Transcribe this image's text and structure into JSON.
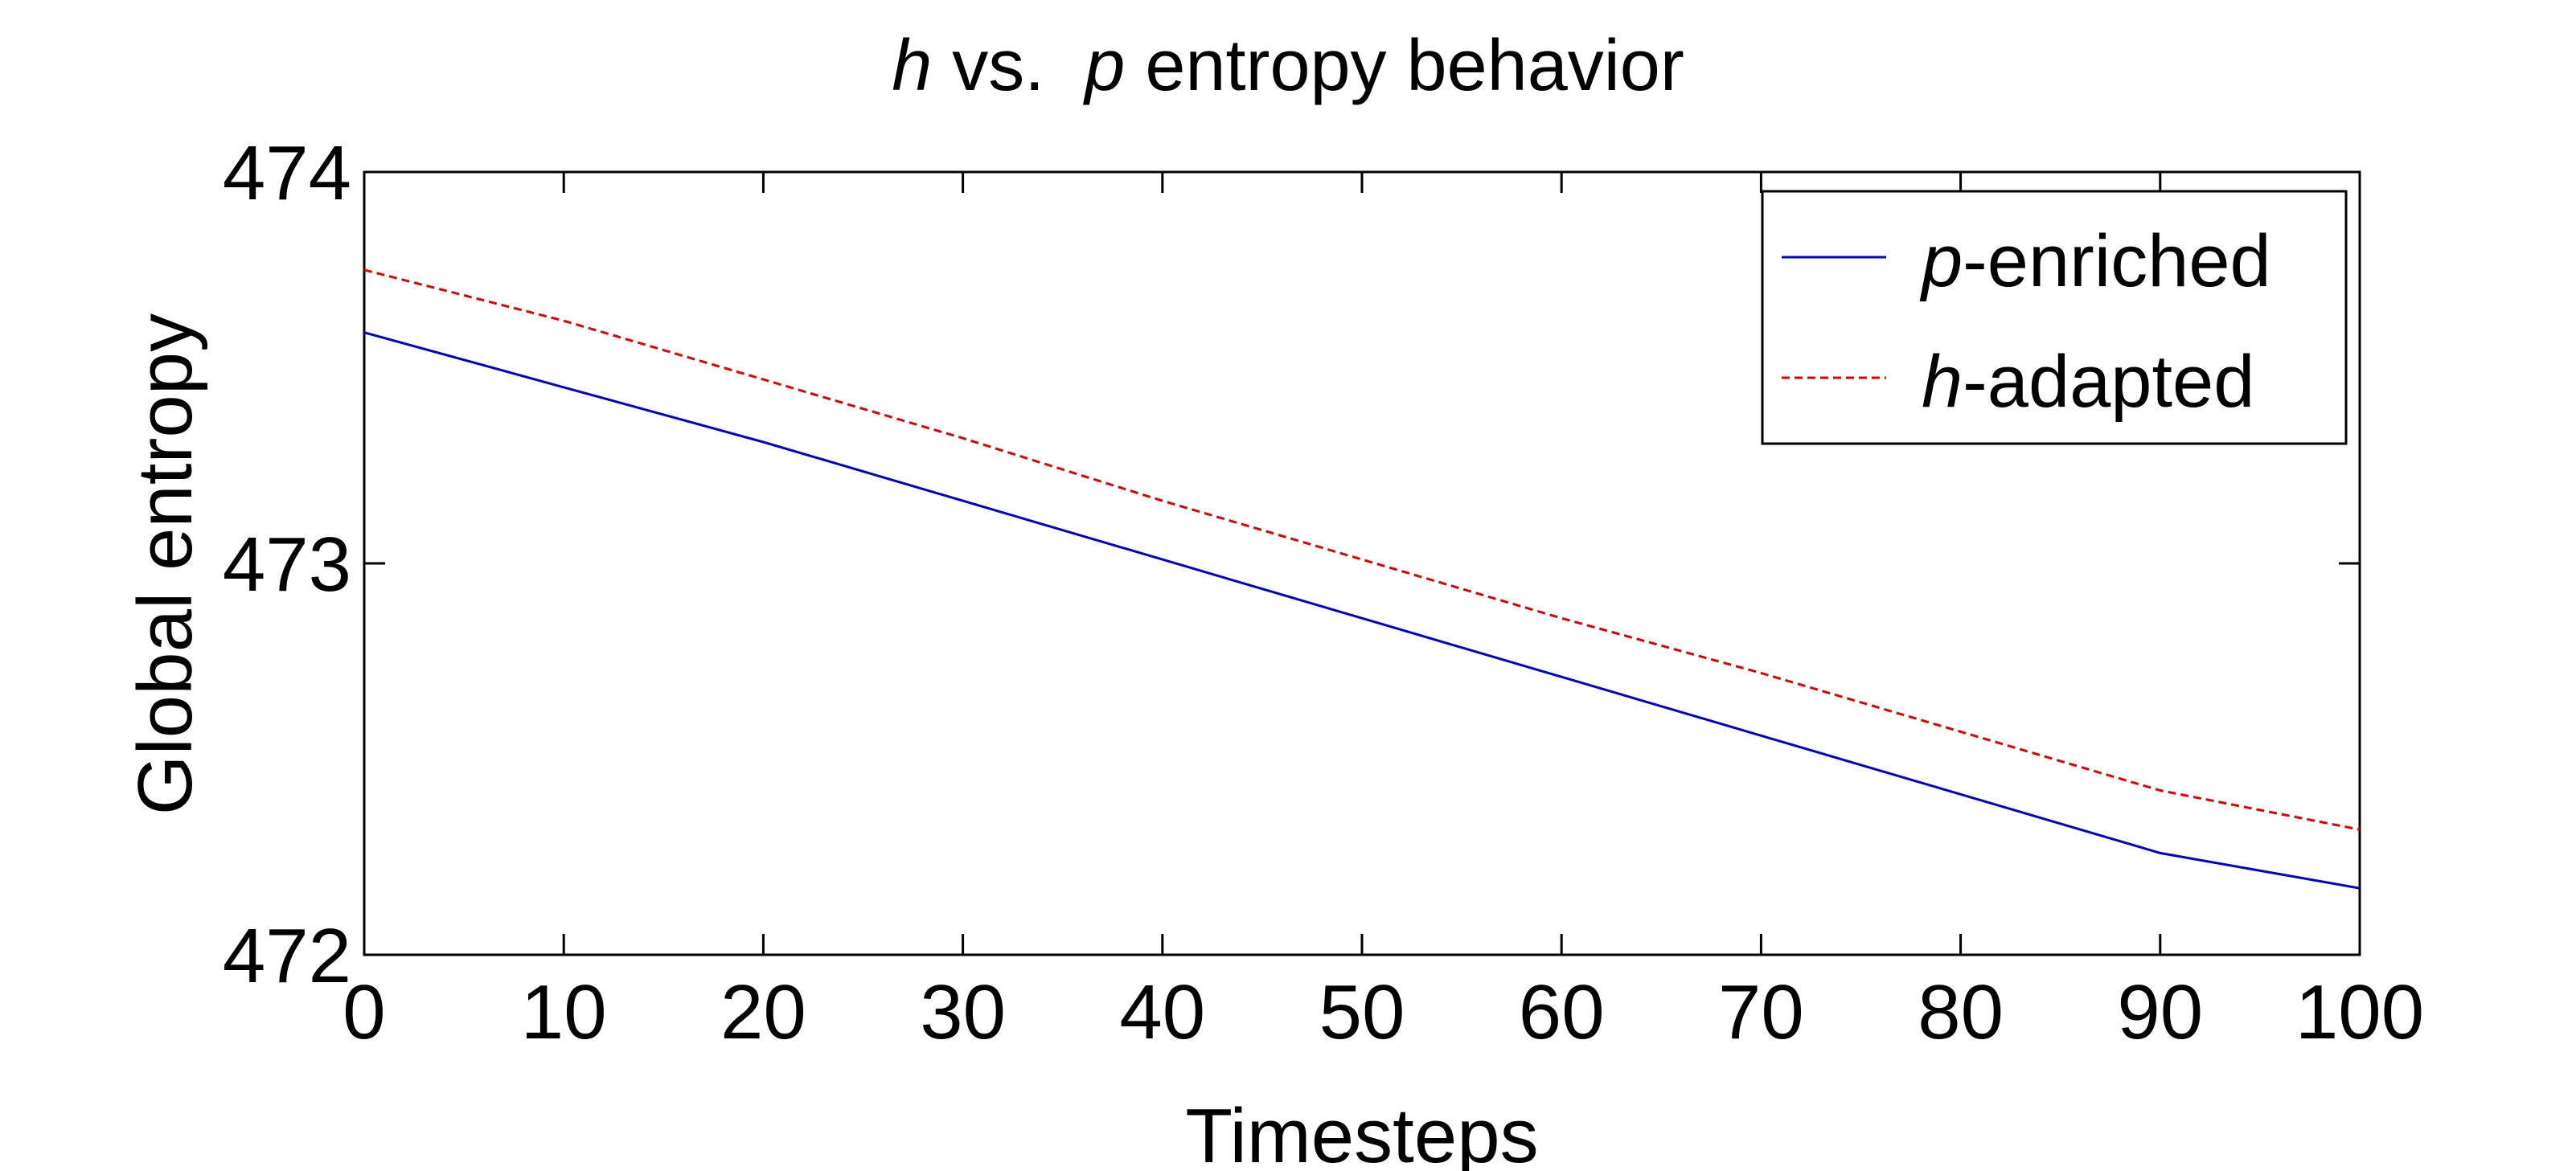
{
  "chart_data": {
    "type": "line",
    "title": {
      "italic_1": "h",
      "text_1": " vs.  ",
      "italic_2": "p",
      "text_2": " entropy behavior"
    },
    "xlabel": "Timesteps",
    "ylabel": "Global entropy",
    "xlim": [
      0,
      100
    ],
    "ylim": [
      472,
      474
    ],
    "xticks": [
      0,
      10,
      20,
      30,
      40,
      50,
      60,
      70,
      80,
      90,
      100
    ],
    "yticks": [
      472,
      473,
      474
    ],
    "grid": false,
    "legend_position": "top-right",
    "series": [
      {
        "name_italic": "p",
        "name_rest": "-enriched",
        "color": "#0000cc",
        "style": "solid",
        "x": [
          0,
          10,
          20,
          30,
          40,
          50,
          60,
          70,
          80,
          90,
          100
        ],
        "y": [
          473.59,
          473.45,
          473.31,
          473.16,
          473.01,
          472.86,
          472.71,
          472.56,
          472.41,
          472.26,
          472.17
        ]
      },
      {
        "name_italic": "h",
        "name_rest": "-adapted",
        "color": "#dd0000",
        "style": "dashed",
        "x": [
          0,
          10,
          20,
          30,
          40,
          50,
          60,
          70,
          80,
          90,
          100
        ],
        "y": [
          473.75,
          473.62,
          473.47,
          473.32,
          473.16,
          473.01,
          472.86,
          472.72,
          472.57,
          472.42,
          472.32
        ]
      }
    ]
  }
}
